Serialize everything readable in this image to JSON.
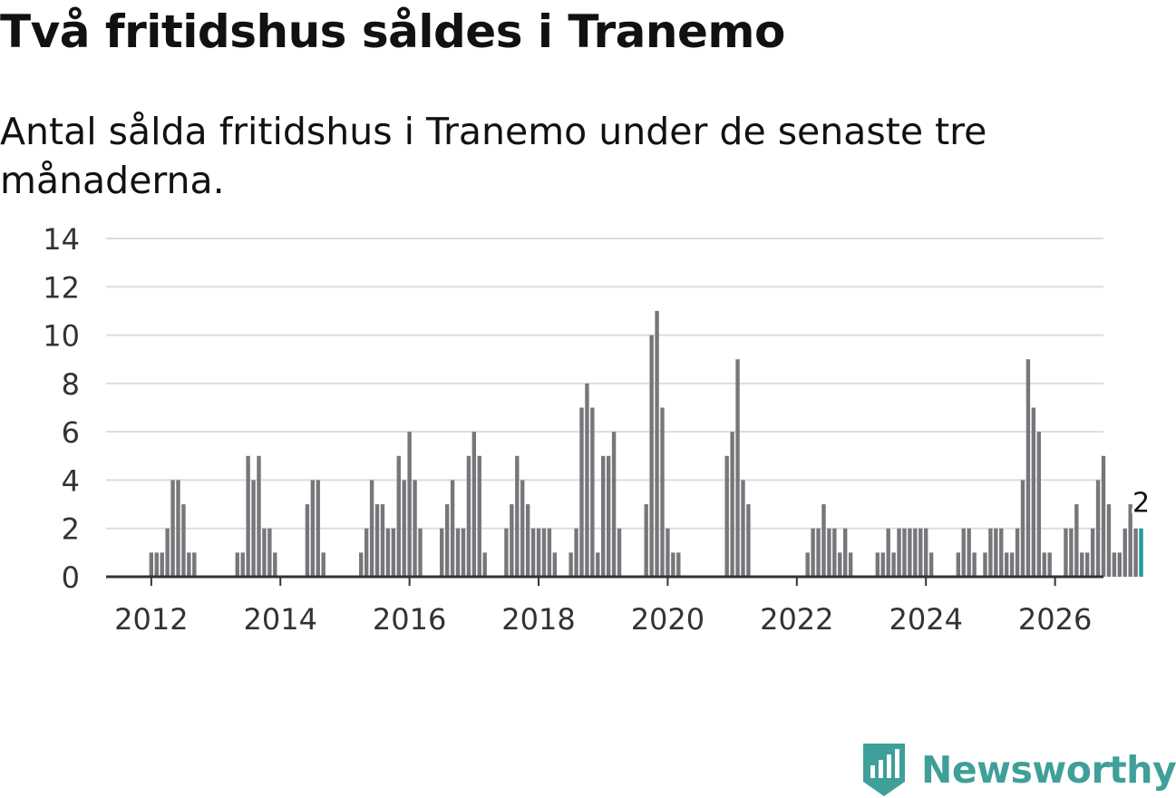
{
  "title": "Två fritidshus såldes i Tranemo",
  "subtitle": "Antal sålda fritidshus i Tranemo under de senaste tre månaderna.",
  "brand": {
    "name": "Newsworthy",
    "color": "#3f9f99",
    "icon": "newsworthy-logo-icon"
  },
  "colors": {
    "bar": "#77767b",
    "highlight": "#1f9d93",
    "grid": "#dddddd",
    "axis": "#333333"
  },
  "chart_data": {
    "type": "bar",
    "title": "Två fritidshus såldes i Tranemo",
    "subtitle": "Antal sålda fritidshus i Tranemo under de senaste tre månaderna.",
    "xlabel": "",
    "ylabel": "",
    "x_range": [
      2011.3,
      2026.75
    ],
    "ylim": [
      0,
      14
    ],
    "y_ticks": [
      0,
      2,
      4,
      6,
      8,
      10,
      12,
      14
    ],
    "x_ticks": [
      2012,
      2014,
      2016,
      2018,
      2020,
      2022,
      2024,
      2026
    ],
    "grid": true,
    "start": {
      "year": 2012,
      "month": 1
    },
    "values": [
      1,
      1,
      1,
      2,
      4,
      4,
      3,
      1,
      1,
      0,
      0,
      0,
      0,
      0,
      0,
      0,
      1,
      1,
      5,
      4,
      5,
      2,
      2,
      1,
      0,
      0,
      0,
      0,
      0,
      3,
      4,
      4,
      1,
      0,
      0,
      0,
      0,
      0,
      0,
      1,
      2,
      4,
      3,
      3,
      2,
      2,
      5,
      4,
      6,
      4,
      2,
      0,
      0,
      0,
      2,
      3,
      4,
      2,
      2,
      5,
      6,
      5,
      1,
      0,
      0,
      0,
      2,
      3,
      5,
      4,
      3,
      2,
      2,
      2,
      2,
      1,
      0,
      0,
      1,
      2,
      7,
      8,
      7,
      1,
      5,
      5,
      6,
      2,
      0,
      0,
      0,
      0,
      3,
      10,
      11,
      7,
      2,
      1,
      1,
      0,
      0,
      0,
      0,
      0,
      0,
      0,
      0,
      5,
      6,
      9,
      4,
      3,
      0,
      0,
      0,
      0,
      0,
      0,
      0,
      0,
      0,
      0,
      1,
      2,
      2,
      3,
      2,
      2,
      1,
      2,
      1,
      0,
      0,
      0,
      0,
      1,
      1,
      2,
      1,
      2,
      2,
      2,
      2,
      2,
      2,
      1,
      0,
      0,
      0,
      0,
      1,
      2,
      2,
      1,
      0,
      1,
      2,
      2,
      2,
      1,
      1,
      2,
      4,
      9,
      7,
      6,
      1,
      1,
      0,
      0,
      2,
      2,
      3,
      1,
      1,
      2,
      4,
      5,
      3,
      1,
      1,
      2,
      3,
      2,
      2
    ],
    "highlight": {
      "label": "2",
      "value": 2
    }
  }
}
